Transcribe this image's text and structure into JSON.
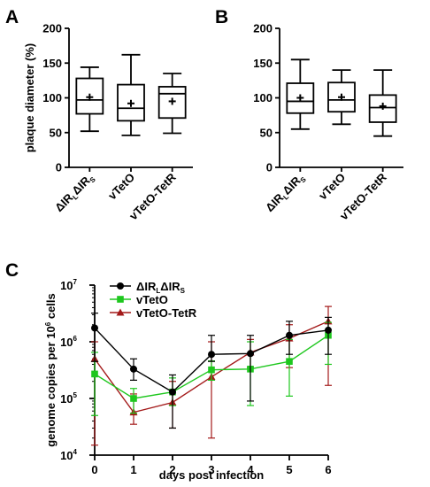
{
  "chart_data": [
    {
      "panel": "A",
      "type": "box",
      "ylabel": "plaque diameter (%)",
      "ylim": [
        0,
        200
      ],
      "yticks": [
        0,
        50,
        100,
        150,
        200
      ],
      "categories": [
        {
          "label": "ΔIR",
          "sub1": "L",
          "label2": "ΔIR",
          "sub2": "S"
        },
        {
          "label": "vTetO"
        },
        {
          "label": "vTetO-TetR"
        }
      ],
      "boxes": [
        {
          "min": 52,
          "q1": 77,
          "median": 97,
          "q3": 128,
          "max": 144,
          "mean": 101
        },
        {
          "min": 46,
          "q1": 67,
          "median": 85,
          "q3": 119,
          "max": 162,
          "mean": 92
        },
        {
          "min": 49,
          "q1": 71,
          "median": 106,
          "q3": 116,
          "max": 135,
          "mean": 95
        }
      ],
      "grid": false
    },
    {
      "panel": "B",
      "type": "box",
      "ylabel": "",
      "ylim": [
        0,
        200
      ],
      "yticks": [
        0,
        50,
        100,
        150,
        200
      ],
      "categories": [
        {
          "label": "ΔIR",
          "sub1": "L",
          "label2": "ΔIR",
          "sub2": "S"
        },
        {
          "label": "vTetO"
        },
        {
          "label": "vTetO-TetR"
        }
      ],
      "boxes": [
        {
          "min": 55,
          "q1": 78,
          "median": 95,
          "q3": 121,
          "max": 155,
          "mean": 100
        },
        {
          "min": 62,
          "q1": 80,
          "median": 97,
          "q3": 122,
          "max": 140,
          "mean": 101
        },
        {
          "min": 45,
          "q1": 65,
          "median": 86,
          "q3": 104,
          "max": 140,
          "mean": 88
        }
      ],
      "grid": false
    },
    {
      "panel": "C",
      "type": "line",
      "scale": "log",
      "xlabel": "days post infection",
      "ylabel": {
        "pre": "genome copies per 10",
        "sup": "6",
        "post": " cells"
      },
      "xlim": [
        0,
        6
      ],
      "xticks": [
        0,
        1,
        2,
        3,
        4,
        5,
        6
      ],
      "ylim_exp": [
        4,
        7
      ],
      "yticks": [
        {
          "base": "10",
          "exp": "4"
        },
        {
          "base": "10",
          "exp": "5"
        },
        {
          "base": "10",
          "exp": "6"
        },
        {
          "base": "10",
          "exp": "7"
        }
      ],
      "legend_position": "top-left",
      "series": [
        {
          "name": "ΔIR",
          "sub1": "L",
          "name2": "ΔIR",
          "sub2": "S",
          "color": "#000000",
          "marker": "circle",
          "x": [
            0,
            1,
            2,
            3,
            4,
            5,
            6
          ],
          "y": [
            1750000,
            330000,
            130000,
            600000,
            620000,
            1300000,
            1600000
          ],
          "err_lo": [
            450000,
            210000,
            30000,
            450000,
            90000,
            600000,
            600000
          ],
          "err_hi": [
            3200000,
            500000,
            260000,
            1300000,
            1300000,
            2300000,
            2700000
          ]
        },
        {
          "name": "vTetO",
          "color": "#1ec71e",
          "marker": "square",
          "x": [
            0,
            1,
            2,
            3,
            4,
            5,
            6
          ],
          "y": [
            270000,
            100000,
            130000,
            320000,
            330000,
            450000,
            1300000
          ],
          "err_lo": [
            50000,
            55000,
            75000,
            210000,
            75000,
            110000,
            400000
          ],
          "err_hi": [
            650000,
            150000,
            230000,
            460000,
            1000000,
            1100000,
            2200000
          ]
        },
        {
          "name": "vTetO-TetR",
          "color": "#a31919",
          "marker": "triangle",
          "x": [
            0,
            1,
            2,
            3,
            4,
            5,
            6
          ],
          "y": [
            500000,
            57000,
            85000,
            240000,
            650000,
            1150000,
            2300000
          ],
          "err_lo": [
            15000,
            35000,
            30000,
            20000,
            350000,
            350000,
            170000
          ],
          "err_hi": [
            1000000,
            120000,
            200000,
            1000000,
            1100000,
            2000000,
            4200000
          ]
        }
      ]
    }
  ]
}
